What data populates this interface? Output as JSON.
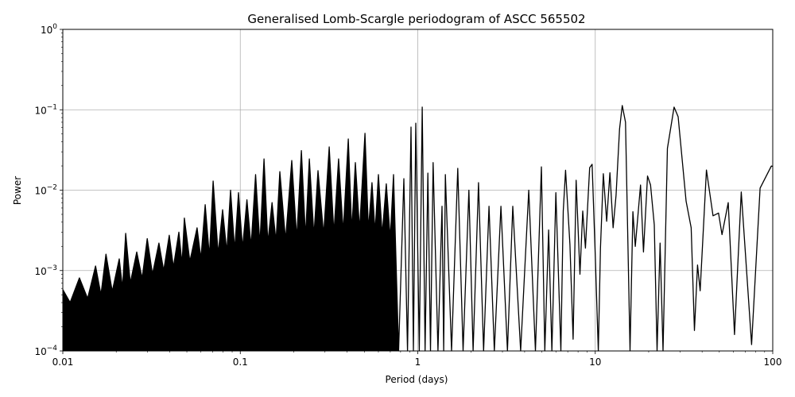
{
  "chart_data": {
    "type": "line",
    "title": "Generalised Lomb-Scargle periodogram of ASCC 565502",
    "xlabel": "Period (days)",
    "ylabel": "Power",
    "xscale": "log",
    "yscale": "log",
    "xlim": [
      0.01,
      100
    ],
    "ylim": [
      0.0001,
      1
    ],
    "grid": true,
    "line_color": "#000000",
    "grid_color": "#b0b0b0",
    "x_ticks": [
      {
        "value": 0.01,
        "label": "0.01"
      },
      {
        "value": 0.1,
        "label": "0.1"
      },
      {
        "value": 1,
        "label": "1"
      },
      {
        "value": 10,
        "label": "10"
      },
      {
        "value": 100,
        "label": "100"
      }
    ],
    "y_ticks": [
      {
        "value": 0.0001,
        "base": "10",
        "exp": "−4"
      },
      {
        "value": 0.001,
        "base": "10",
        "exp": "−3"
      },
      {
        "value": 0.01,
        "base": "10",
        "exp": "−2"
      },
      {
        "value": 0.1,
        "base": "10",
        "exp": "−1"
      },
      {
        "value": 1,
        "base": "10",
        "exp": "0"
      }
    ],
    "series": [
      {
        "points": [
          [
            0.01,
            0.00058
          ],
          [
            0.011,
            0.0004
          ],
          [
            0.0124,
            0.00081
          ],
          [
            0.0138,
            0.00045
          ],
          [
            0.0153,
            0.00114
          ],
          [
            0.0164,
            0.0005
          ],
          [
            0.0175,
            0.0016
          ],
          [
            0.019,
            0.00055
          ],
          [
            0.0208,
            0.0014
          ],
          [
            0.0217,
            0.0006
          ],
          [
            0.0226,
            0.0029
          ],
          [
            0.024,
            0.0007
          ],
          [
            0.0261,
            0.0017
          ],
          [
            0.028,
            0.0008
          ],
          [
            0.0299,
            0.0025
          ],
          [
            0.032,
            0.0009
          ],
          [
            0.0348,
            0.0022
          ],
          [
            0.037,
            0.001
          ],
          [
            0.0398,
            0.00275
          ],
          [
            0.042,
            0.0011
          ],
          [
            0.0451,
            0.003
          ],
          [
            0.047,
            0.0012
          ],
          [
            0.0484,
            0.0045
          ],
          [
            0.052,
            0.0013
          ],
          [
            0.0571,
            0.0034
          ],
          [
            0.06,
            0.0014
          ],
          [
            0.0634,
            0.0066
          ],
          [
            0.067,
            0.0015
          ],
          [
            0.0703,
            0.013
          ],
          [
            0.075,
            0.0016
          ],
          [
            0.0795,
            0.0057
          ],
          [
            0.084,
            0.0017
          ],
          [
            0.0881,
            0.01
          ],
          [
            0.093,
            0.0018
          ],
          [
            0.0977,
            0.0093
          ],
          [
            0.103,
            0.0019
          ],
          [
            0.109,
            0.0076
          ],
          [
            0.115,
            0.002
          ],
          [
            0.122,
            0.0156
          ],
          [
            0.129,
            0.0021
          ],
          [
            0.136,
            0.0245
          ],
          [
            0.143,
            0.0022
          ],
          [
            0.151,
            0.007
          ],
          [
            0.159,
            0.0023
          ],
          [
            0.167,
            0.017
          ],
          [
            0.18,
            0.0024
          ],
          [
            0.195,
            0.0234
          ],
          [
            0.208,
            0.0025
          ],
          [
            0.221,
            0.031
          ],
          [
            0.233,
            0.0026
          ],
          [
            0.245,
            0.0245
          ],
          [
            0.26,
            0.0027
          ],
          [
            0.274,
            0.0175
          ],
          [
            0.295,
            0.0028
          ],
          [
            0.317,
            0.0345
          ],
          [
            0.337,
            0.0029
          ],
          [
            0.358,
            0.0245
          ],
          [
            0.38,
            0.003
          ],
          [
            0.406,
            0.0434
          ],
          [
            0.425,
            0.0031
          ],
          [
            0.445,
            0.022
          ],
          [
            0.47,
            0.0032
          ],
          [
            0.504,
            0.051
          ],
          [
            0.527,
            0.0032
          ],
          [
            0.552,
            0.0124
          ],
          [
            0.575,
            0.003
          ],
          [
            0.6,
            0.0156
          ],
          [
            0.63,
            0.0028
          ],
          [
            0.665,
            0.012
          ],
          [
            0.7,
            0.0025
          ],
          [
            0.73,
            0.0156
          ],
          [
            0.78,
            0.0001
          ],
          [
            0.835,
            0.0139
          ],
          [
            0.875,
            0.0001
          ],
          [
            0.916,
            0.061
          ],
          [
            0.945,
            0.0001
          ],
          [
            0.975,
            0.068
          ],
          [
            1.02,
            0.0001
          ],
          [
            1.06,
            0.108
          ],
          [
            1.1,
            0.0001
          ],
          [
            1.14,
            0.0163
          ],
          [
            1.18,
            0.0001
          ],
          [
            1.22,
            0.022
          ],
          [
            1.3,
            0.0001
          ],
          [
            1.37,
            0.0063
          ],
          [
            1.4,
            0.0001
          ],
          [
            1.43,
            0.0156
          ],
          [
            1.55,
            0.0001
          ],
          [
            1.68,
            0.0187
          ],
          [
            1.8,
            0.0001
          ],
          [
            1.94,
            0.01
          ],
          [
            2.05,
            0.0001
          ],
          [
            2.2,
            0.0124
          ],
          [
            2.35,
            0.0001
          ],
          [
            2.52,
            0.0063
          ],
          [
            2.7,
            0.0001
          ],
          [
            2.94,
            0.0063
          ],
          [
            3.2,
            0.0001
          ],
          [
            3.43,
            0.0063
          ],
          [
            3.8,
            0.0001
          ],
          [
            4.22,
            0.01
          ],
          [
            4.6,
            0.0001
          ],
          [
            4.97,
            0.0195
          ],
          [
            5.2,
            0.0001
          ],
          [
            5.46,
            0.0032
          ],
          [
            5.7,
            0.0001
          ],
          [
            6.0,
            0.0093
          ],
          [
            6.4,
            0.0001
          ],
          [
            6.6,
            0.0055
          ],
          [
            6.8,
            0.0177
          ],
          [
            7.2,
            0.0021
          ],
          [
            7.5,
            0.00014
          ],
          [
            7.8,
            0.0133
          ],
          [
            8.2,
            0.0009
          ],
          [
            8.5,
            0.0055
          ],
          [
            8.8,
            0.0019
          ],
          [
            9.3,
            0.019
          ],
          [
            9.6,
            0.021
          ],
          [
            10.0,
            0.0015
          ],
          [
            10.4,
            0.0001
          ],
          [
            10.7,
            0.0019
          ],
          [
            11.1,
            0.016
          ],
          [
            11.6,
            0.0041
          ],
          [
            12.1,
            0.0165
          ],
          [
            12.6,
            0.0034
          ],
          [
            13.1,
            0.0086
          ],
          [
            13.7,
            0.0575
          ],
          [
            14.2,
            0.113
          ],
          [
            14.8,
            0.07
          ],
          [
            15.7,
            0.0001
          ],
          [
            16.3,
            0.0054
          ],
          [
            16.8,
            0.002
          ],
          [
            18.0,
            0.0116
          ],
          [
            18.7,
            0.0017
          ],
          [
            19.7,
            0.015
          ],
          [
            20.5,
            0.0116
          ],
          [
            21.5,
            0.0037
          ],
          [
            22.3,
            0.0001
          ],
          [
            23.2,
            0.0022
          ],
          [
            24.1,
            0.0001
          ],
          [
            25.5,
            0.033
          ],
          [
            27.8,
            0.108
          ],
          [
            29.3,
            0.082
          ],
          [
            32.5,
            0.0073
          ],
          [
            34.7,
            0.0034
          ],
          [
            36.2,
            0.00018
          ],
          [
            37.7,
            0.00117
          ],
          [
            39,
            0.00056
          ],
          [
            42.3,
            0.0178
          ],
          [
            46.1,
            0.0048
          ],
          [
            49.5,
            0.0052
          ],
          [
            51.8,
            0.0028
          ],
          [
            56.1,
            0.007
          ],
          [
            60.9,
            0.00016
          ],
          [
            66.5,
            0.0095
          ],
          [
            76,
            0.00012
          ],
          [
            84.9,
            0.0106
          ],
          [
            98.2,
            0.0199
          ],
          [
            100,
            0.0198
          ]
        ]
      }
    ]
  }
}
